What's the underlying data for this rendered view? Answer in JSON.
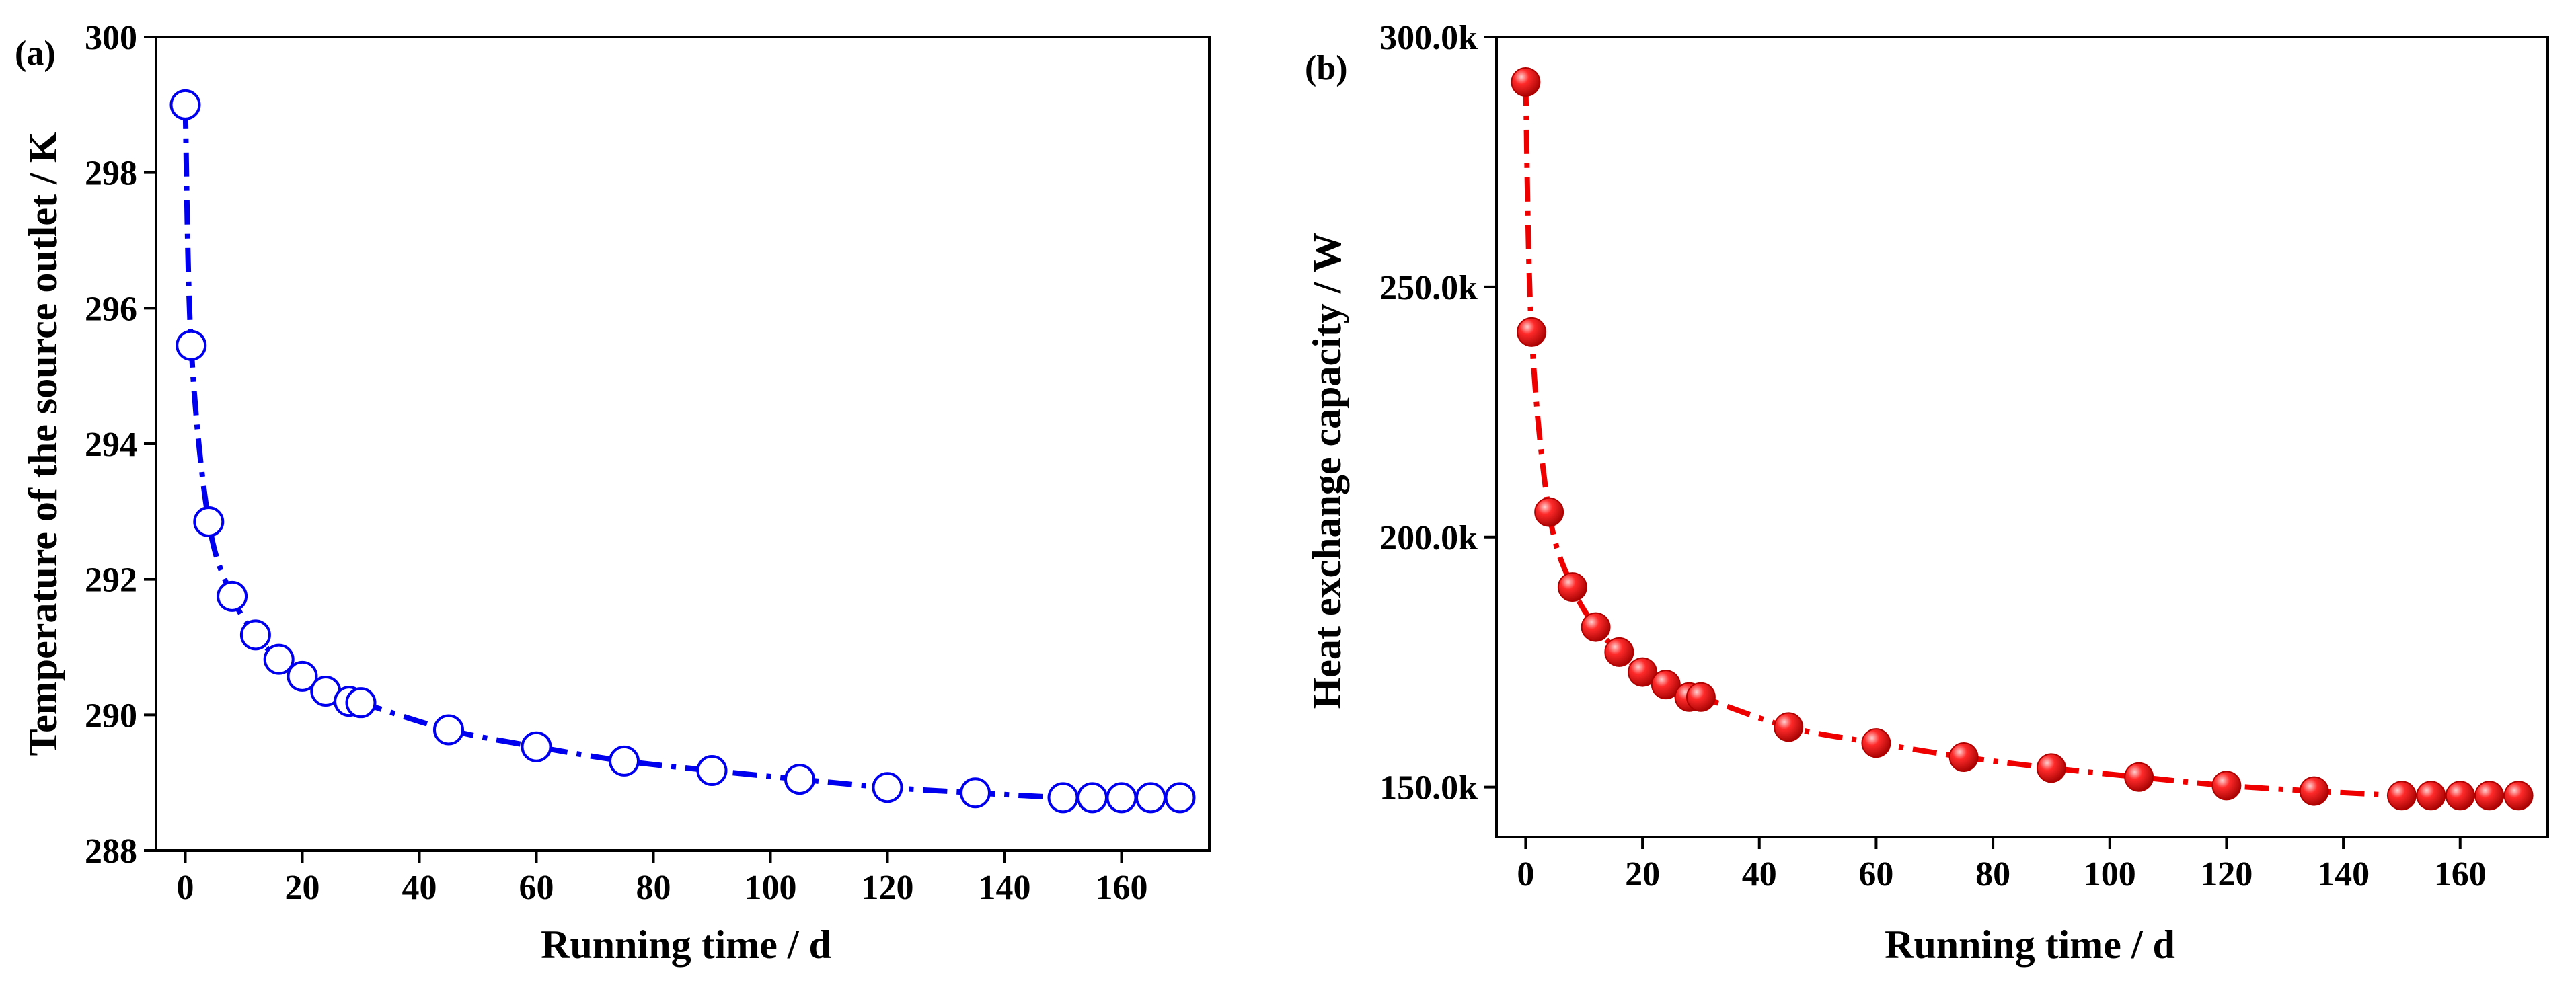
{
  "chart_data": [
    {
      "type": "line",
      "panel_label": "(a)",
      "xlabel": "Running time / d",
      "ylabel": "Temperature of the source outlet / K",
      "xlim": [
        -5,
        175
      ],
      "ylim": [
        288,
        300
      ],
      "xticks": [
        0,
        20,
        40,
        60,
        80,
        100,
        120,
        140,
        160
      ],
      "yticks": [
        288,
        290,
        292,
        294,
        296,
        298,
        300
      ],
      "ytick_labels": [
        "288",
        "290",
        "292",
        "294",
        "296",
        "298",
        "300"
      ],
      "line_color": "#0000ee",
      "marker": "open-circle",
      "series": [
        {
          "name": "Source outlet temperature",
          "x": [
            0,
            1,
            4,
            8,
            12,
            16,
            20,
            24,
            28,
            30,
            45,
            60,
            75,
            90,
            105,
            120,
            135,
            150,
            155,
            160,
            165,
            170
          ],
          "y": [
            299.0,
            295.45,
            292.85,
            291.75,
            291.18,
            290.82,
            290.57,
            290.35,
            290.2,
            290.18,
            289.78,
            289.53,
            289.32,
            289.18,
            289.05,
            288.93,
            288.85,
            288.78,
            288.78,
            288.78,
            288.78,
            288.78
          ]
        }
      ]
    },
    {
      "type": "line",
      "panel_label": "(b)",
      "xlabel": "Running time / d",
      "ylabel": "Heat exchange capacity / W",
      "xlim": [
        -5,
        175
      ],
      "ylim": [
        140000,
        300000
      ],
      "xticks": [
        0,
        20,
        40,
        60,
        80,
        100,
        120,
        140,
        160
      ],
      "yticks": [
        150000,
        200000,
        250000,
        300000
      ],
      "ytick_labels": [
        "150.0k",
        "200.0k",
        "250.0k",
        "300.0k"
      ],
      "line_color": "#ee0000",
      "marker": "filled-sphere",
      "series": [
        {
          "name": "Heat exchange capacity",
          "x": [
            0,
            1,
            4,
            8,
            12,
            16,
            20,
            24,
            28,
            30,
            45,
            60,
            75,
            90,
            105,
            120,
            135,
            150,
            155,
            160,
            165,
            170
          ],
          "y": [
            291000,
            241000,
            205000,
            190000,
            182000,
            177000,
            173000,
            170500,
            168000,
            168000,
            162000,
            158800,
            156000,
            153800,
            152000,
            150300,
            149200,
            148300,
            148300,
            148300,
            148300,
            148300
          ]
        }
      ]
    }
  ]
}
